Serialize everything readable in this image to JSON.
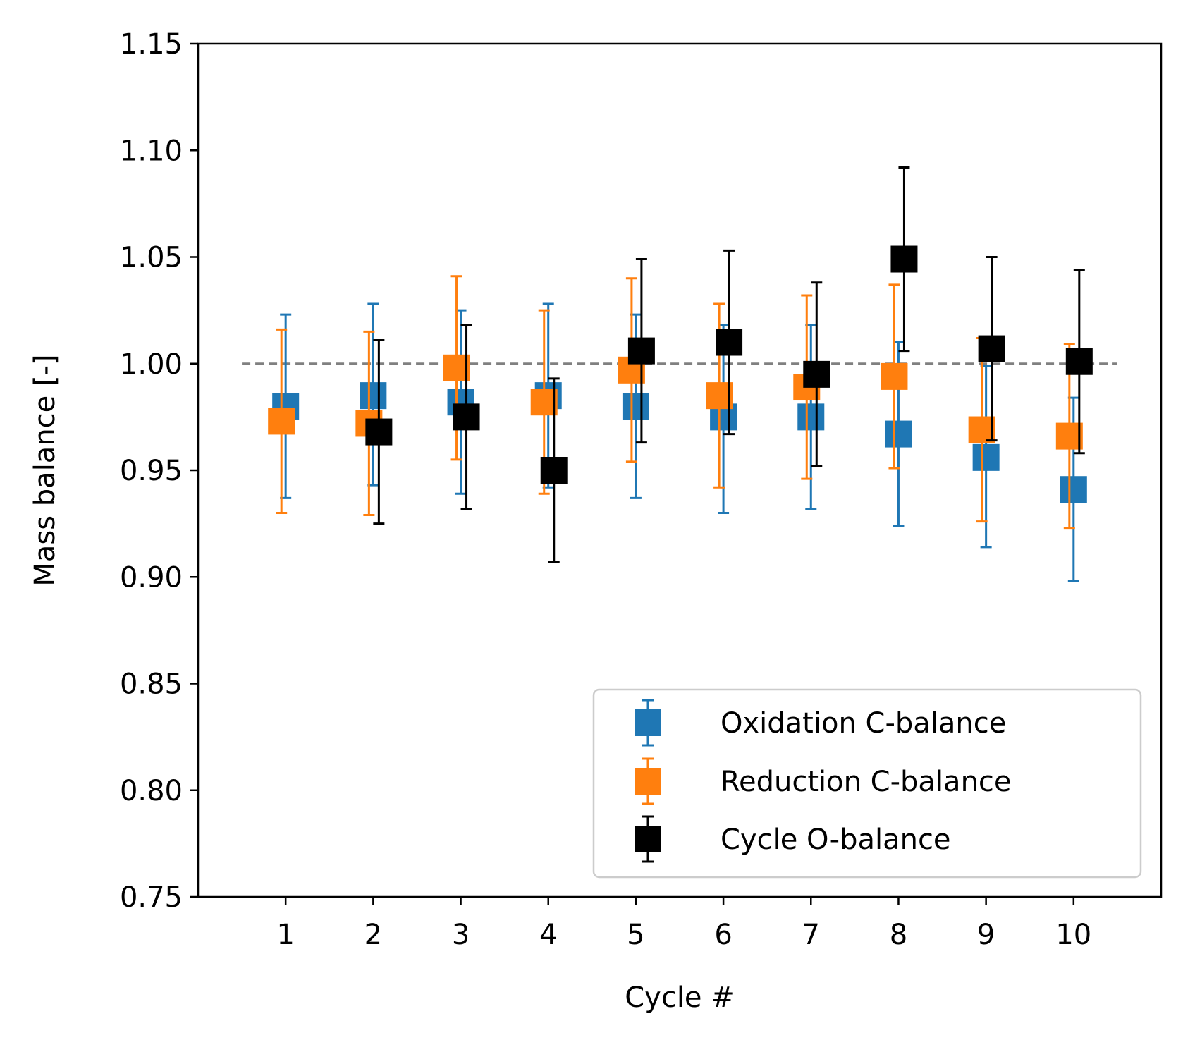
{
  "chart_data": {
    "type": "scatter",
    "title": "",
    "xlabel": "Cycle #",
    "ylabel": "Mass balance [-]",
    "xlim": [
      0,
      11
    ],
    "ylim": [
      0.75,
      1.15
    ],
    "x_ticks": [
      1,
      2,
      3,
      4,
      5,
      6,
      7,
      8,
      9,
      10
    ],
    "x_tick_labels": [
      "1",
      "2",
      "3",
      "4",
      "5",
      "6",
      "7",
      "8",
      "9",
      "10"
    ],
    "y_ticks": [
      0.75,
      0.8,
      0.85,
      0.9,
      0.95,
      1.0,
      1.05,
      1.1,
      1.15
    ],
    "y_tick_labels": [
      "0.75",
      "0.80",
      "0.85",
      "0.90",
      "0.95",
      "1.00",
      "1.05",
      "1.10",
      "1.15"
    ],
    "reference_line": {
      "y": 1.0,
      "style": "dashed",
      "color": "#808080"
    },
    "grid": false,
    "legend_position": "lower-right",
    "series": [
      {
        "name": "Oxidation C-balance",
        "color": "#1f77b4",
        "x": [
          1,
          2,
          3,
          4,
          5,
          6,
          7,
          8,
          9,
          10
        ],
        "y": [
          0.98,
          0.985,
          0.982,
          0.985,
          0.98,
          0.975,
          0.975,
          0.967,
          0.956,
          0.941
        ],
        "err_low": [
          0.937,
          0.943,
          0.939,
          0.942,
          0.937,
          0.93,
          0.932,
          0.924,
          0.914,
          0.898
        ],
        "err_high": [
          1.023,
          1.028,
          1.025,
          1.028,
          1.023,
          1.018,
          1.018,
          1.01,
          0.999,
          0.984
        ]
      },
      {
        "name": "Reduction C-balance",
        "color": "#ff7f0e",
        "x": [
          1,
          2,
          3,
          4,
          5,
          6,
          7,
          8,
          9,
          10
        ],
        "y": [
          0.973,
          0.972,
          0.998,
          0.982,
          0.997,
          0.985,
          0.989,
          0.994,
          0.969,
          0.966
        ],
        "err_low": [
          0.93,
          0.929,
          0.955,
          0.939,
          0.954,
          0.942,
          0.946,
          0.951,
          0.926,
          0.923
        ],
        "err_high": [
          1.016,
          1.015,
          1.041,
          1.025,
          1.04,
          1.028,
          1.032,
          1.037,
          1.012,
          1.009
        ]
      },
      {
        "name": "Cycle O-balance",
        "color": "#000000",
        "x": [
          1,
          2,
          3,
          4,
          5,
          6,
          7,
          8,
          9,
          10
        ],
        "y": [
          null,
          0.968,
          0.975,
          0.95,
          1.006,
          1.01,
          0.995,
          1.049,
          1.007,
          1.001
        ],
        "err_low": [
          null,
          0.925,
          0.932,
          0.907,
          0.963,
          0.967,
          0.952,
          1.006,
          0.964,
          0.958
        ],
        "err_high": [
          null,
          1.011,
          1.018,
          0.993,
          1.049,
          1.053,
          1.038,
          1.092,
          1.05,
          1.044
        ]
      }
    ]
  }
}
